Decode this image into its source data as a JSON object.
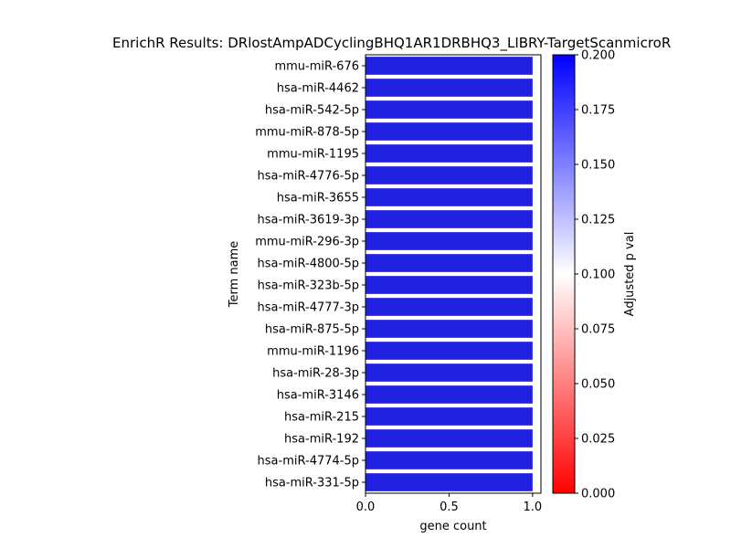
{
  "chart_data": {
    "type": "bar",
    "orientation": "horizontal",
    "title": "EnrichR Results: DRlostAmpADCyclingBHQ1AR1DRBHQ3_LIBRY-TargetScanmicroR",
    "xlabel": "gene count",
    "ylabel": "Term name",
    "xlim": [
      0,
      1.05
    ],
    "xticks": [
      "0.0",
      "0.5",
      "1.0"
    ],
    "xtick_values": [
      0,
      0.5,
      1.0
    ],
    "grid": false,
    "categories": [
      "mmu-miR-676",
      "hsa-miR-4462",
      "hsa-miR-542-5p",
      "mmu-miR-878-5p",
      "mmu-miR-1195",
      "hsa-miR-4776-5p",
      "hsa-miR-3655",
      "hsa-miR-3619-3p",
      "mmu-miR-296-3p",
      "hsa-miR-4800-5p",
      "hsa-miR-323b-5p",
      "hsa-miR-4777-3p",
      "hsa-miR-875-5p",
      "mmu-miR-1196",
      "hsa-miR-28-3p",
      "hsa-miR-3146",
      "hsa-miR-215",
      "hsa-miR-192",
      "hsa-miR-4774-5p",
      "hsa-miR-331-5p"
    ],
    "values": [
      1,
      1,
      1,
      1,
      1,
      1,
      1,
      1,
      1,
      1,
      1,
      1,
      1,
      1,
      1,
      1,
      1,
      1,
      1,
      1
    ],
    "bar_color": "#2121e0",
    "colorbar": {
      "label": "Adjusted p val",
      "range": [
        0.0,
        0.2
      ],
      "ticks": [
        "0.000",
        "0.025",
        "0.050",
        "0.075",
        "0.100",
        "0.125",
        "0.150",
        "0.175",
        "0.200"
      ],
      "tick_values": [
        0.0,
        0.025,
        0.05,
        0.075,
        0.1,
        0.125,
        0.15,
        0.175,
        0.2
      ],
      "colors": [
        "#ff0000",
        "#ffffff",
        "#0000ff"
      ]
    }
  }
}
